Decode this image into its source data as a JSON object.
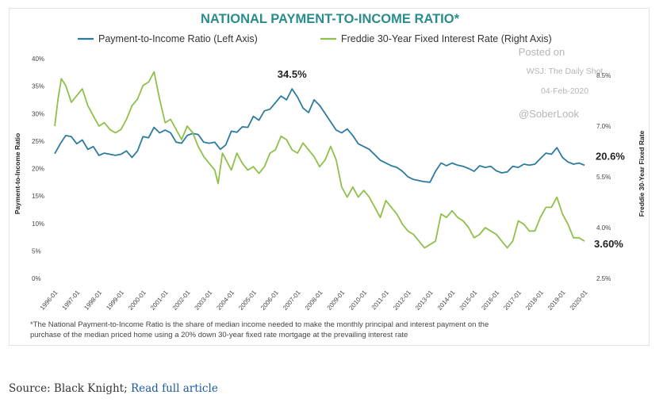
{
  "chart_data": {
    "type": "line",
    "title": "NATIONAL PAYMENT-TO-INCOME RATIO*",
    "ylabel_left": "Payment-to-Income Ratio",
    "ylabel_right": "Freddie 30-Year Fixed Rate",
    "left_ticks": [
      "0%",
      "5%",
      "10%",
      "15%",
      "20%",
      "25%",
      "30%",
      "35%",
      "40%"
    ],
    "left_ylim": [
      0,
      40
    ],
    "right_ticks": [
      "2.5%",
      "4.0%",
      "5.5%",
      "7.0%",
      "8.5%"
    ],
    "right_ylim": [
      2.5,
      9.0
    ],
    "x_ticks": [
      "1996-01",
      "1997-01",
      "1998-01",
      "1999-01",
      "2000-01",
      "2001-01",
      "2002-01",
      "2003-01",
      "2004-01",
      "2005-01",
      "2006-01",
      "2007-01",
      "2008-01",
      "2009-01",
      "2010-01",
      "2011-01",
      "2012-01",
      "2013-01",
      "2014-01",
      "2015-01",
      "2016-01",
      "2017-01",
      "2018-01",
      "2019-01",
      "2020-01"
    ],
    "x_range": [
      1996.0,
      2020.0
    ],
    "series": [
      {
        "name": "Payment-to-Income Ratio (Left Axis)",
        "axis": "left",
        "color": "#2b7ba0",
        "points": [
          [
            1996.0,
            22.7
          ],
          [
            1996.25,
            24.5
          ],
          [
            1996.5,
            26
          ],
          [
            1996.75,
            25.8
          ],
          [
            1997.0,
            24.5
          ],
          [
            1997.25,
            25.2
          ],
          [
            1997.5,
            23.5
          ],
          [
            1997.75,
            24
          ],
          [
            1998.0,
            22.4
          ],
          [
            1998.25,
            22.8
          ],
          [
            1998.5,
            22.6
          ],
          [
            1998.75,
            22.4
          ],
          [
            1999.0,
            22.6
          ],
          [
            1999.25,
            23.2
          ],
          [
            1999.5,
            22
          ],
          [
            1999.75,
            23.2
          ],
          [
            2000.0,
            25.8
          ],
          [
            2000.25,
            25.6
          ],
          [
            2000.5,
            27.5
          ],
          [
            2000.75,
            26.5
          ],
          [
            2001.0,
            27
          ],
          [
            2001.25,
            26.5
          ],
          [
            2001.5,
            24.8
          ],
          [
            2001.75,
            24.6
          ],
          [
            2002.0,
            26
          ],
          [
            2002.25,
            26.4
          ],
          [
            2002.5,
            26.2
          ],
          [
            2002.75,
            24.8
          ],
          [
            2003.0,
            24.6
          ],
          [
            2003.25,
            24.8
          ],
          [
            2003.5,
            23.5
          ],
          [
            2003.75,
            24.3
          ],
          [
            2004.0,
            26.8
          ],
          [
            2004.25,
            26.6
          ],
          [
            2004.5,
            27.6
          ],
          [
            2004.75,
            27.5
          ],
          [
            2005.0,
            29.5
          ],
          [
            2005.25,
            28.8
          ],
          [
            2005.5,
            30.5
          ],
          [
            2005.75,
            30.8
          ],
          [
            2006.0,
            32
          ],
          [
            2006.25,
            33.2
          ],
          [
            2006.5,
            32.5
          ],
          [
            2006.75,
            34.5
          ],
          [
            2007.0,
            33
          ],
          [
            2007.25,
            31
          ],
          [
            2007.5,
            30.2
          ],
          [
            2007.75,
            32.5
          ],
          [
            2008.0,
            31.5
          ],
          [
            2008.25,
            30
          ],
          [
            2008.5,
            28.5
          ],
          [
            2008.75,
            27
          ],
          [
            2009.0,
            26.5
          ],
          [
            2009.25,
            27.2
          ],
          [
            2009.5,
            26
          ],
          [
            2009.75,
            24.5
          ],
          [
            2010.0,
            24
          ],
          [
            2010.25,
            23.5
          ],
          [
            2010.5,
            22.5
          ],
          [
            2010.75,
            21.5
          ],
          [
            2011.0,
            21
          ],
          [
            2011.25,
            20.5
          ],
          [
            2011.5,
            20.2
          ],
          [
            2011.75,
            19.5
          ],
          [
            2012.0,
            18.5
          ],
          [
            2012.25,
            18
          ],
          [
            2012.5,
            17.8
          ],
          [
            2012.75,
            17.6
          ],
          [
            2013.0,
            17.5
          ],
          [
            2013.25,
            19.5
          ],
          [
            2013.5,
            21
          ],
          [
            2013.75,
            20.5
          ],
          [
            2014.0,
            21
          ],
          [
            2014.25,
            20.6
          ],
          [
            2014.5,
            20.4
          ],
          [
            2014.75,
            20
          ],
          [
            2015.0,
            19.5
          ],
          [
            2015.25,
            20.5
          ],
          [
            2015.5,
            20.2
          ],
          [
            2015.75,
            20.4
          ],
          [
            2016.0,
            19.6
          ],
          [
            2016.25,
            19.2
          ],
          [
            2016.5,
            19.4
          ],
          [
            2016.75,
            20.4
          ],
          [
            2017.0,
            20.2
          ],
          [
            2017.25,
            20.8
          ],
          [
            2017.5,
            20.6
          ],
          [
            2017.75,
            20.8
          ],
          [
            2018.0,
            21.8
          ],
          [
            2018.25,
            22.8
          ],
          [
            2018.5,
            22.6
          ],
          [
            2018.75,
            23.8
          ],
          [
            2019.0,
            22
          ],
          [
            2019.25,
            21.2
          ],
          [
            2019.5,
            20.8
          ],
          [
            2019.75,
            21
          ],
          [
            2020.0,
            20.6
          ]
        ]
      },
      {
        "name": "Freddie 30-Year Fixed Interest Rate (Right Axis)",
        "axis": "right",
        "color": "#8fc04a",
        "points": [
          [
            1996.0,
            7.0
          ],
          [
            1996.15,
            7.8
          ],
          [
            1996.3,
            8.4
          ],
          [
            1996.5,
            8.2
          ],
          [
            1996.75,
            7.7
          ],
          [
            1997.0,
            7.9
          ],
          [
            1997.25,
            8.1
          ],
          [
            1997.5,
            7.6
          ],
          [
            1997.75,
            7.3
          ],
          [
            1998.0,
            7.0
          ],
          [
            1998.25,
            7.1
          ],
          [
            1998.5,
            6.9
          ],
          [
            1998.75,
            6.8
          ],
          [
            1999.0,
            6.9
          ],
          [
            1999.25,
            7.2
          ],
          [
            1999.5,
            7.6
          ],
          [
            1999.75,
            7.8
          ],
          [
            2000.0,
            8.2
          ],
          [
            2000.25,
            8.3
          ],
          [
            2000.5,
            8.6
          ],
          [
            2000.75,
            7.8
          ],
          [
            2001.0,
            7.1
          ],
          [
            2001.25,
            7.2
          ],
          [
            2001.5,
            6.9
          ],
          [
            2001.75,
            6.6
          ],
          [
            2002.0,
            7.0
          ],
          [
            2002.25,
            6.8
          ],
          [
            2002.5,
            6.4
          ],
          [
            2002.75,
            6.1
          ],
          [
            2003.0,
            5.9
          ],
          [
            2003.25,
            5.7
          ],
          [
            2003.4,
            5.3
          ],
          [
            2003.6,
            6.2
          ],
          [
            2004.0,
            5.7
          ],
          [
            2004.25,
            6.2
          ],
          [
            2004.5,
            5.9
          ],
          [
            2004.75,
            5.7
          ],
          [
            2005.0,
            5.8
          ],
          [
            2005.25,
            5.6
          ],
          [
            2005.5,
            5.8
          ],
          [
            2005.75,
            6.2
          ],
          [
            2006.0,
            6.3
          ],
          [
            2006.25,
            6.7
          ],
          [
            2006.5,
            6.6
          ],
          [
            2006.75,
            6.3
          ],
          [
            2007.0,
            6.2
          ],
          [
            2007.25,
            6.5
          ],
          [
            2007.5,
            6.3
          ],
          [
            2007.75,
            6.1
          ],
          [
            2008.0,
            5.8
          ],
          [
            2008.25,
            6.0
          ],
          [
            2008.5,
            6.4
          ],
          [
            2008.75,
            6.0
          ],
          [
            2009.0,
            5.2
          ],
          [
            2009.25,
            4.9
          ],
          [
            2009.5,
            5.2
          ],
          [
            2009.75,
            4.9
          ],
          [
            2010.0,
            5.1
          ],
          [
            2010.25,
            4.9
          ],
          [
            2010.5,
            4.6
          ],
          [
            2010.75,
            4.3
          ],
          [
            2011.0,
            4.8
          ],
          [
            2011.25,
            4.6
          ],
          [
            2011.5,
            4.4
          ],
          [
            2011.75,
            4.1
          ],
          [
            2012.0,
            3.9
          ],
          [
            2012.25,
            3.8
          ],
          [
            2012.5,
            3.6
          ],
          [
            2012.75,
            3.4
          ],
          [
            2013.0,
            3.5
          ],
          [
            2013.25,
            3.6
          ],
          [
            2013.5,
            4.4
          ],
          [
            2013.75,
            4.3
          ],
          [
            2014.0,
            4.5
          ],
          [
            2014.25,
            4.3
          ],
          [
            2014.5,
            4.2
          ],
          [
            2014.75,
            4.0
          ],
          [
            2015.0,
            3.7
          ],
          [
            2015.25,
            3.8
          ],
          [
            2015.5,
            4.0
          ],
          [
            2015.75,
            3.9
          ],
          [
            2016.0,
            3.8
          ],
          [
            2016.25,
            3.6
          ],
          [
            2016.5,
            3.4
          ],
          [
            2016.75,
            3.6
          ],
          [
            2017.0,
            4.2
          ],
          [
            2017.25,
            4.1
          ],
          [
            2017.5,
            3.9
          ],
          [
            2017.75,
            3.9
          ],
          [
            2018.0,
            4.3
          ],
          [
            2018.25,
            4.6
          ],
          [
            2018.5,
            4.6
          ],
          [
            2018.75,
            4.9
          ],
          [
            2019.0,
            4.4
          ],
          [
            2019.25,
            4.1
          ],
          [
            2019.5,
            3.7
          ],
          [
            2019.75,
            3.7
          ],
          [
            2020.0,
            3.6
          ]
        ]
      }
    ],
    "annotations": [
      {
        "text": "34.5%",
        "x": 2006.75,
        "y": 34.5,
        "axis": "left"
      },
      {
        "text": "20.6%",
        "x": 2020.0,
        "y": 20.6,
        "axis": "left"
      },
      {
        "text": "3.60%",
        "x": 2020.0,
        "y": 3.6,
        "axis": "right"
      }
    ],
    "grid": false,
    "legend": "top"
  },
  "watermark": [
    "Posted on",
    "WSJ: The Daily Shot",
    "04-Feb-2020",
    "@SoberLook"
  ],
  "footnote": [
    "*The National Payment-to-Income Ratio is the share of median income needed to make the monthly principal and interest payment on the",
    "purchase of the median priced home using a 20% down 30-year fixed rate mortgage at the prevailing interest rate"
  ],
  "source": {
    "prefix": "Source: Black Knight; ",
    "link": "Read full article"
  }
}
